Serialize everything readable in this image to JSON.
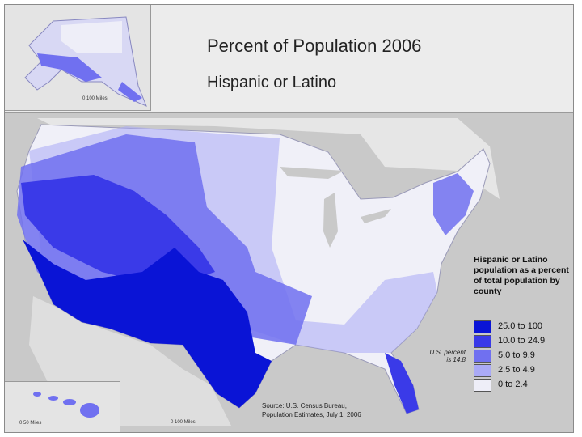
{
  "title": "Percent of Population 2006",
  "subtitle": "Hispanic or Latino",
  "legend": {
    "title": "Hispanic or Latino population as a percent of total population by county",
    "items": [
      {
        "label": "25.0 to 100",
        "color": "#0a14d6"
      },
      {
        "label": "10.0 to 24.9",
        "color": "#3a3ae8"
      },
      {
        "label": "5.0 to 9.9",
        "color": "#7070f0"
      },
      {
        "label": "2.5 to 4.9",
        "color": "#aaaaf6"
      },
      {
        "label": "0 to 2.4",
        "color": "#eeeef8"
      }
    ]
  },
  "us_percent": {
    "line1": "U.S. percent",
    "line2": "is 14.8"
  },
  "source": {
    "line1": "Source: U.S. Census Bureau,",
    "line2": "Population Estimates, July 1, 2006"
  },
  "insets": {
    "alaska_scale": "0   100 Miles",
    "hawaii_scale": "0     50 Miles",
    "conus_scale": "0     100 Miles"
  },
  "colors": {
    "background": "#c9c9c9",
    "header": "#ececec",
    "border": "#e8e8f2"
  }
}
